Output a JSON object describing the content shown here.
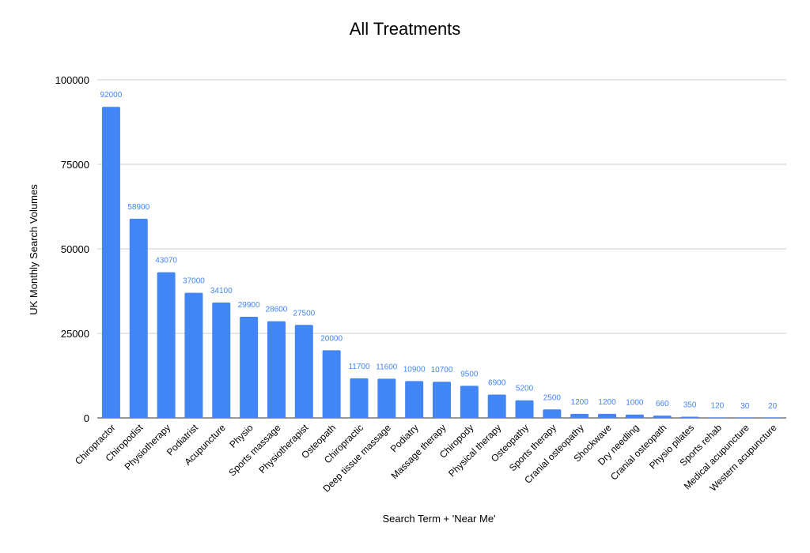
{
  "chart_data": {
    "type": "bar",
    "title": "All Treatments",
    "xlabel": "Search Term + 'Near Me'",
    "ylabel": "UK Monthly Search Volumes",
    "ylim": [
      0,
      100000
    ],
    "yticks": [
      0,
      25000,
      50000,
      75000,
      100000
    ],
    "grid": true,
    "legend": "none",
    "colors": {
      "bar": "#4285f4",
      "data_label": "#4285f4",
      "grid": "#cccccc",
      "text": "#000000"
    },
    "categories": [
      "Chiropractor",
      "Chiropodist",
      "Physiotherapy",
      "Podiatrist",
      "Acupuncture",
      "Physio",
      "Sports massage",
      "Physiotherapist",
      "Osteopath",
      "Chiropractic",
      "Deep tissue massage",
      "Podiatry",
      "Massage therapy",
      "Chiropody",
      "Physical therapy",
      "Osteopathy",
      "Sports therapy",
      "Cranial osteopathy",
      "Shockwave",
      "Dry needling",
      "Cranial osteopath",
      "Physio pilates",
      "Sports rehab",
      "Medical acupuncture",
      "Western acupuncture"
    ],
    "values": [
      92000,
      58900,
      43070,
      37000,
      34100,
      29900,
      28600,
      27500,
      20000,
      11700,
      11600,
      10900,
      10700,
      9500,
      6900,
      5200,
      2500,
      1200,
      1200,
      1000,
      660,
      350,
      120,
      30,
      20
    ]
  }
}
